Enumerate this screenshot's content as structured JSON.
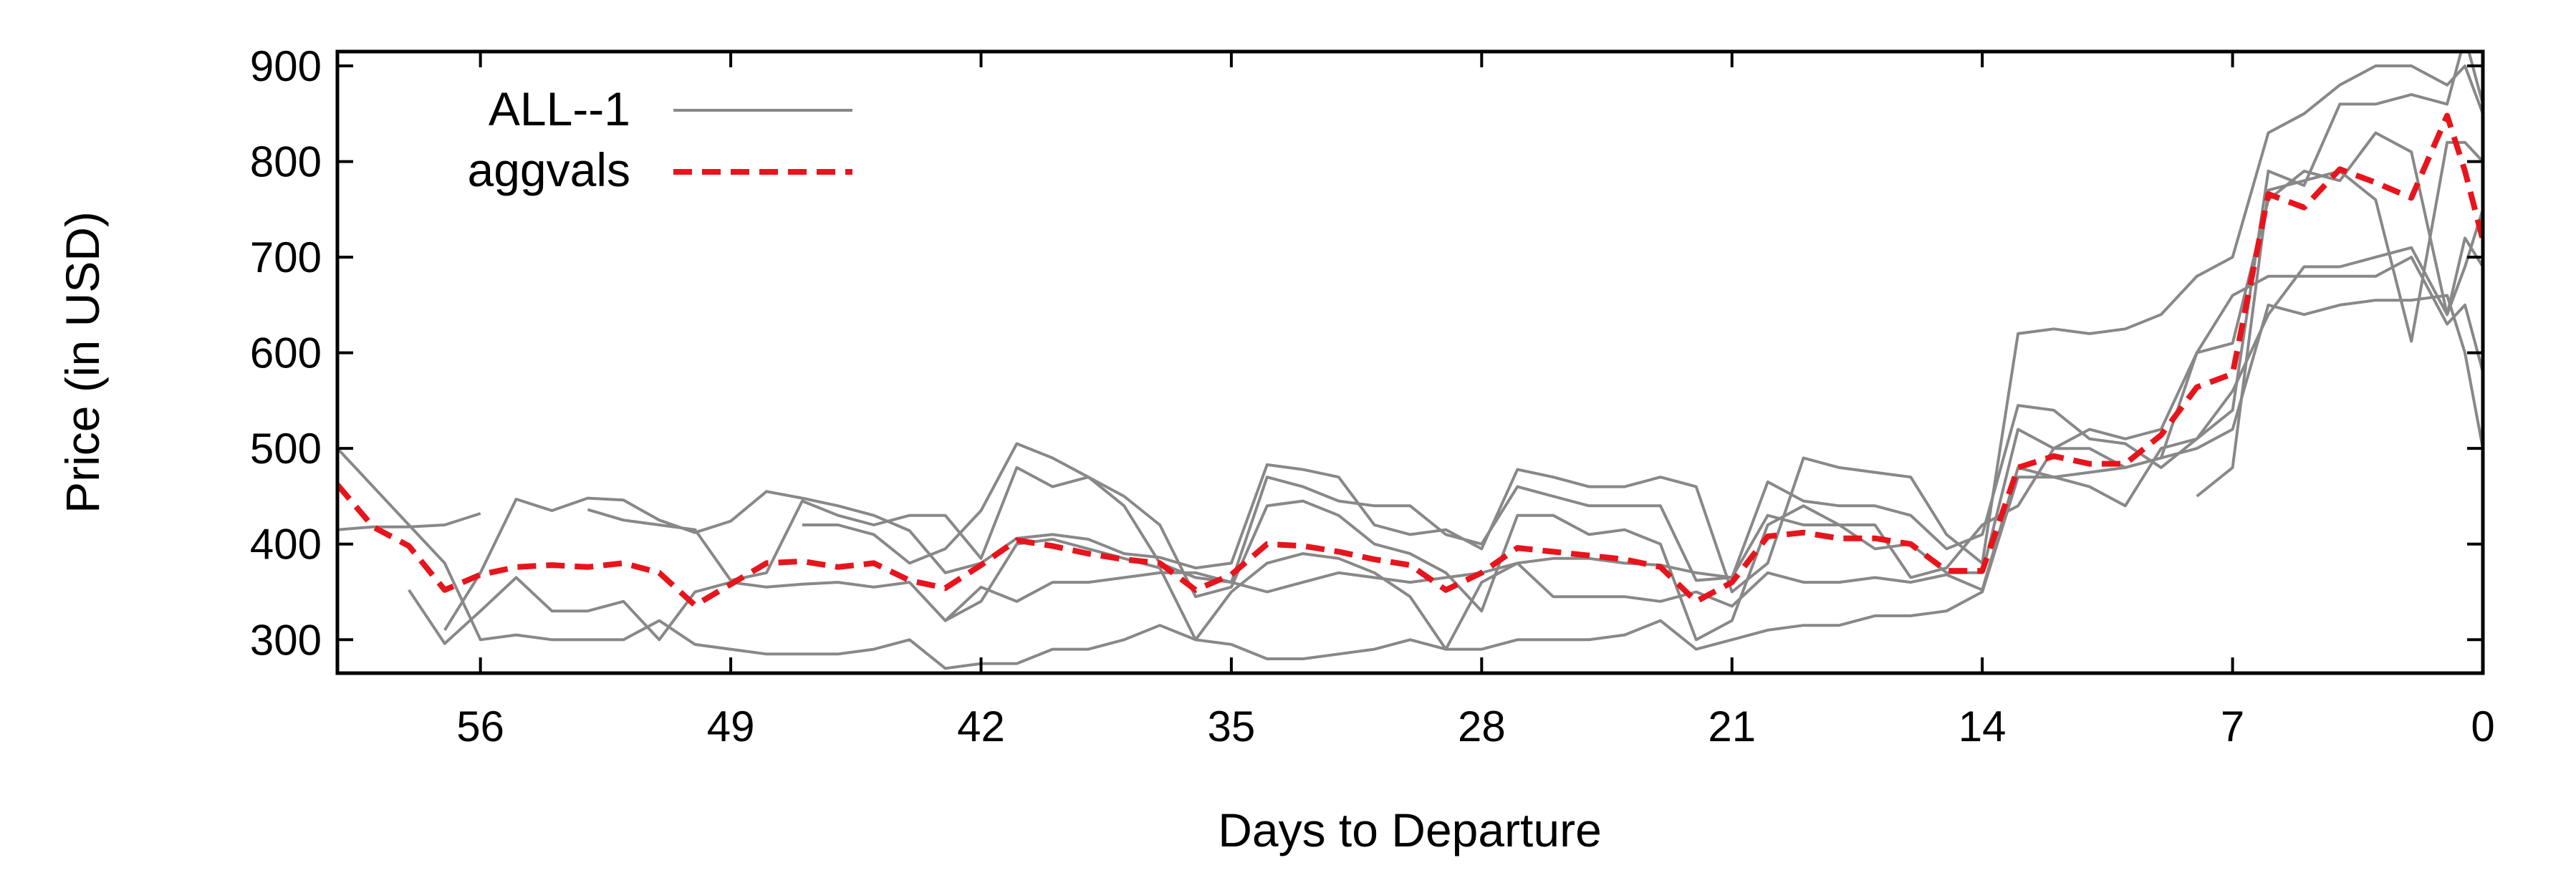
{
  "chart_data": {
    "type": "line",
    "xlabel": "Days to Departure",
    "ylabel": "Price (in USD)",
    "xlim": [
      60,
      0
    ],
    "ylim": [
      265,
      915
    ],
    "x_reversed": true,
    "xticks": [
      56,
      49,
      42,
      35,
      28,
      21,
      14,
      7,
      0
    ],
    "xtick_labels": [
      "56",
      "49",
      "42",
      "35",
      "28",
      "21",
      "14",
      "7",
      "0"
    ],
    "yticks": [
      300,
      400,
      500,
      600,
      700,
      800,
      900
    ],
    "ytick_labels": [
      "300",
      "400",
      "500",
      "600",
      "700",
      "800",
      "900"
    ],
    "grid": false,
    "legend_position": "top-left",
    "colors": {
      "all": "#888888",
      "aggvals": "#e8141c"
    },
    "legend": [
      {
        "label": "ALL--1",
        "color": "#888888",
        "dash": "solid"
      },
      {
        "label": "aggvals",
        "color": "#e8141c",
        "dash": "dashed"
      }
    ],
    "series": [
      {
        "name": "aggvals",
        "x": [
          60,
          59,
          58,
          57,
          56,
          55,
          54,
          53,
          52,
          51,
          50,
          49,
          48,
          47,
          46,
          45,
          44,
          43,
          42,
          41,
          40,
          39,
          38,
          37,
          36,
          35,
          34,
          33,
          32,
          31,
          30,
          29,
          28,
          27,
          26,
          25,
          24,
          23,
          22,
          21,
          20,
          19,
          18,
          17,
          16,
          15,
          14,
          13,
          12,
          11,
          10,
          9,
          8,
          7,
          6,
          5,
          4,
          3,
          2,
          1,
          0.5,
          0
        ],
        "y": [
          462,
          418,
          398,
          352,
          368,
          376,
          378,
          376,
          380,
          370,
          336,
          358,
          380,
          382,
          376,
          380,
          362,
          354,
          378,
          404,
          398,
          390,
          384,
          380,
          352,
          368,
          400,
          398,
          392,
          384,
          378,
          352,
          370,
          396,
          392,
          388,
          384,
          376,
          340,
          360,
          408,
          412,
          406,
          406,
          400,
          372,
          372,
          480,
          492,
          484,
          484,
          514,
          564,
          578,
          766,
          752,
          792,
          778,
          762,
          848,
          790,
          718
        ]
      },
      {
        "name": "ALL--1",
        "x": [
          60,
          59,
          58,
          57,
          56,
          55,
          54,
          53,
          52,
          51,
          50,
          49,
          48,
          47,
          46,
          45,
          44,
          43,
          42,
          41,
          40,
          39,
          38,
          37,
          36,
          35,
          34,
          33,
          32,
          31,
          30,
          29,
          28,
          27,
          26,
          25,
          24,
          23,
          22,
          21,
          20,
          19,
          18,
          17,
          16,
          15,
          14,
          13,
          12,
          11,
          10,
          9,
          8,
          7,
          6,
          5,
          4,
          3,
          2,
          1,
          0.5,
          0
        ],
        "y": [
          500,
          460,
          420,
          380,
          300,
          305,
          300,
          300,
          300,
          320,
          295,
          290,
          285,
          285,
          285,
          290,
          300,
          270,
          275,
          275,
          290,
          290,
          300,
          315,
          300,
          295,
          280,
          280,
          285,
          290,
          300,
          290,
          290,
          300,
          300,
          300,
          305,
          320,
          290,
          300,
          310,
          315,
          315,
          325,
          325,
          330,
          350,
          470,
          470,
          475,
          480,
          490,
          500,
          520,
          650,
          640,
          650,
          655,
          655,
          660,
          600,
          500
        ]
      },
      {
        "name": "",
        "x": [
          60,
          59,
          58,
          57,
          56
        ],
        "y": [
          415,
          418,
          418,
          420,
          432
        ]
      },
      {
        "name": "",
        "x": [
          58,
          57,
          56,
          55,
          54,
          53,
          52,
          51,
          50,
          49,
          48,
          47,
          46,
          45,
          44,
          43,
          42,
          41,
          40,
          39,
          38,
          37,
          36,
          35,
          34,
          33,
          32,
          31,
          30,
          29,
          28,
          27,
          26,
          25,
          24,
          23,
          22,
          21,
          20,
          19,
          18,
          17,
          16,
          15,
          14,
          13,
          12,
          11,
          10,
          9,
          8,
          7,
          6,
          5,
          4,
          3,
          2,
          1,
          0.5,
          0
        ],
        "y": [
          352,
          296,
          330,
          365,
          330,
          330,
          340,
          300,
          350,
          360,
          355,
          358,
          360,
          355,
          360,
          320,
          355,
          340,
          360,
          360,
          365,
          370,
          370,
          360,
          350,
          360,
          370,
          365,
          360,
          365,
          370,
          380,
          345,
          345,
          345,
          340,
          350,
          335,
          370,
          360,
          360,
          365,
          360,
          368,
          352,
          480,
          470,
          460,
          440,
          500,
          510,
          560,
          640,
          690,
          690,
          700,
          710,
          640,
          690,
          750
        ]
      },
      {
        "name": "",
        "x": [
          57,
          56,
          55,
          54,
          53,
          52,
          51,
          50,
          49,
          48,
          47,
          46,
          45,
          44,
          43,
          42,
          41,
          40,
          39,
          38,
          37,
          36,
          35,
          34,
          33,
          32,
          31,
          30,
          29,
          28,
          27,
          26,
          25,
          24,
          23,
          22,
          21,
          20,
          19,
          18,
          17,
          16,
          15,
          14,
          13,
          12,
          11,
          10,
          9,
          8,
          7,
          6,
          5,
          4,
          3,
          2,
          1,
          0.5,
          0
        ],
        "y": [
          310,
          370,
          447,
          435,
          448,
          446,
          425,
          412,
          424,
          455,
          448,
          440,
          430,
          414,
          370,
          380,
          406,
          410,
          405,
          390,
          386,
          375,
          380,
          483,
          478,
          470,
          420,
          410,
          415,
          395,
          478,
          470,
          460,
          460,
          470,
          460,
          350,
          380,
          490,
          480,
          475,
          470,
          410,
          380,
          620,
          625,
          620,
          625,
          640,
          680,
          700,
          830,
          850,
          880,
          900,
          900,
          880,
          900,
          850
        ]
      },
      {
        "name": "",
        "x": [
          53,
          52,
          51,
          50,
          49,
          48,
          47,
          46,
          45,
          44,
          43,
          42,
          41,
          40,
          39,
          38,
          37,
          36,
          35,
          34,
          33,
          32,
          31,
          30,
          29,
          28,
          27,
          26,
          25,
          24,
          23,
          22,
          21,
          20,
          19,
          18,
          17,
          16,
          15,
          14,
          13,
          12,
          11,
          10,
          9,
          8,
          7,
          6,
          5,
          4,
          3,
          2,
          1,
          0.5,
          0
        ],
        "y": [
          436,
          425,
          420,
          415,
          362,
          370,
          445,
          430,
          420,
          430,
          430,
          385,
          480,
          460,
          470,
          440,
          380,
          365,
          360,
          470,
          460,
          445,
          440,
          440,
          410,
          400,
          460,
          450,
          440,
          440,
          440,
          362,
          365,
          465,
          445,
          440,
          440,
          430,
          395,
          410,
          545,
          540,
          510,
          505,
          480,
          510,
          540,
          790,
          775,
          860,
          860,
          870,
          860,
          930,
          860
        ]
      },
      {
        "name": "",
        "x": [
          47,
          46,
          45,
          44,
          43,
          42,
          41,
          40,
          39,
          38,
          37,
          36,
          35,
          34,
          33,
          32,
          31,
          30,
          29,
          28,
          27,
          26,
          25,
          24,
          23,
          22,
          21,
          20,
          19,
          18,
          17,
          16,
          15,
          14,
          13,
          12,
          11,
          10,
          9,
          8,
          7,
          6,
          5,
          4,
          3,
          2,
          1,
          0.5,
          0
        ],
        "y": [
          420,
          420,
          410,
          380,
          395,
          435,
          505,
          490,
          470,
          450,
          420,
          345,
          355,
          440,
          445,
          430,
          400,
          390,
          370,
          330,
          430,
          430,
          410,
          415,
          400,
          300,
          320,
          420,
          440,
          420,
          395,
          400,
          370,
          370,
          520,
          500,
          500,
          480,
          490,
          600,
          610,
          760,
          790,
          780,
          830,
          810,
          640,
          720,
          690
        ]
      },
      {
        "name": "",
        "x": [
          43,
          42,
          41,
          40,
          39,
          38,
          37,
          36,
          35,
          34,
          33,
          32,
          31,
          30,
          29,
          28,
          27,
          26,
          25,
          24,
          23,
          22,
          21,
          20,
          19,
          18,
          17,
          16,
          15,
          14,
          13,
          12,
          11,
          10,
          9,
          8,
          7,
          6,
          5,
          4,
          3,
          2,
          1,
          0.5,
          0
        ],
        "y": [
          320,
          340,
          400,
          405,
          395,
          385,
          375,
          300,
          350,
          380,
          390,
          385,
          370,
          345,
          290,
          360,
          380,
          385,
          385,
          380,
          378,
          370,
          365,
          430,
          420,
          420,
          420,
          365,
          375,
          420,
          440,
          500,
          520,
          510,
          520,
          600,
          660,
          680,
          680,
          680,
          680,
          700,
          630,
          650,
          580
        ]
      },
      {
        "name": "",
        "x": [
          8,
          7,
          6,
          5,
          4,
          3,
          2,
          1,
          0.5,
          0
        ],
        "y": [
          450,
          480,
          770,
          780,
          790,
          760,
          612,
          820,
          820,
          800
        ]
      }
    ]
  }
}
